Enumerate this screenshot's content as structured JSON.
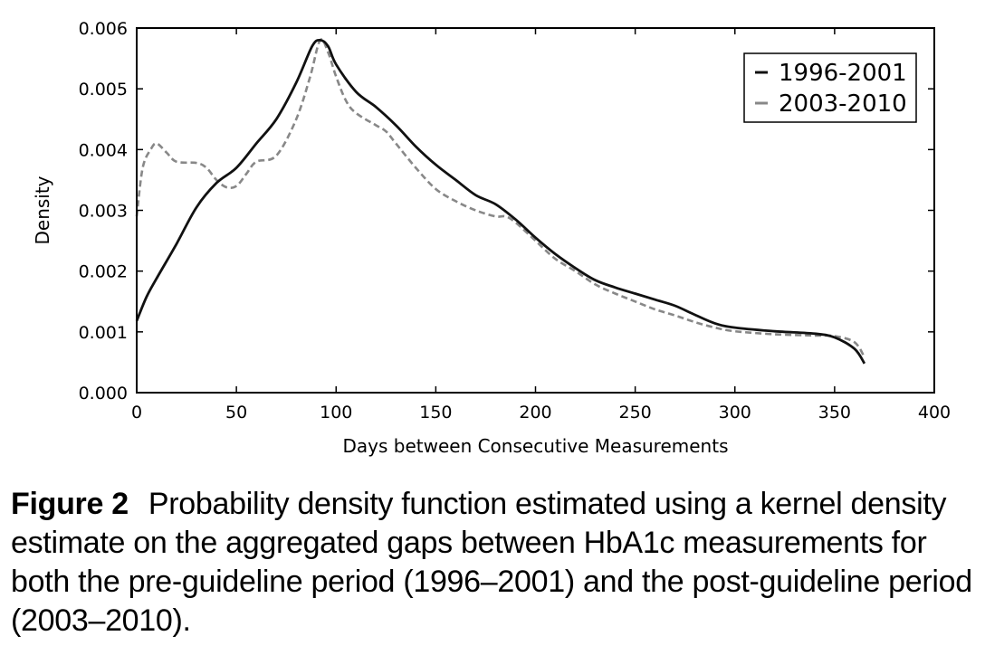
{
  "chart_data": {
    "type": "line",
    "xlabel": "Days between Consecutive Measurements",
    "ylabel": "Density",
    "xlim": [
      0,
      400
    ],
    "ylim": [
      0,
      0.006
    ],
    "xticks": [
      "0",
      "50",
      "100",
      "150",
      "200",
      "250",
      "300",
      "350",
      "400"
    ],
    "yticks": [
      "0.000",
      "0.001",
      "0.002",
      "0.003",
      "0.004",
      "0.005",
      "0.006"
    ],
    "grid": false,
    "legend_position": "top-right",
    "series": [
      {
        "name": "1996-2001",
        "style": "solid",
        "color": "#111111",
        "points": [
          [
            0,
            0.00118
          ],
          [
            5,
            0.00158
          ],
          [
            10,
            0.00188
          ],
          [
            20,
            0.00245
          ],
          [
            30,
            0.00305
          ],
          [
            40,
            0.00345
          ],
          [
            50,
            0.0037
          ],
          [
            60,
            0.0041
          ],
          [
            70,
            0.0045
          ],
          [
            80,
            0.0051
          ],
          [
            88,
            0.0057
          ],
          [
            92,
            0.0058
          ],
          [
            96,
            0.0057
          ],
          [
            100,
            0.0054
          ],
          [
            110,
            0.00495
          ],
          [
            120,
            0.0047
          ],
          [
            130,
            0.0044
          ],
          [
            140,
            0.00405
          ],
          [
            150,
            0.00375
          ],
          [
            160,
            0.0035
          ],
          [
            170,
            0.00325
          ],
          [
            180,
            0.0031
          ],
          [
            190,
            0.00285
          ],
          [
            200,
            0.00255
          ],
          [
            210,
            0.00228
          ],
          [
            220,
            0.00205
          ],
          [
            230,
            0.00185
          ],
          [
            240,
            0.00173
          ],
          [
            250,
            0.00163
          ],
          [
            260,
            0.00153
          ],
          [
            270,
            0.00143
          ],
          [
            280,
            0.00128
          ],
          [
            290,
            0.00114
          ],
          [
            300,
            0.00107
          ],
          [
            320,
            0.00101
          ],
          [
            340,
            0.00097
          ],
          [
            350,
            0.00091
          ],
          [
            360,
            0.00072
          ],
          [
            365,
            0.00048
          ]
        ]
      },
      {
        "name": "2003-2010",
        "style": "dashed",
        "color": "#888888",
        "points": [
          [
            0,
            0.0029
          ],
          [
            3,
            0.0037
          ],
          [
            7,
            0.004
          ],
          [
            10,
            0.0041
          ],
          [
            15,
            0.00395
          ],
          [
            20,
            0.0038
          ],
          [
            30,
            0.00378
          ],
          [
            35,
            0.0037
          ],
          [
            40,
            0.0035
          ],
          [
            45,
            0.00338
          ],
          [
            50,
            0.0034
          ],
          [
            55,
            0.0036
          ],
          [
            60,
            0.0038
          ],
          [
            70,
            0.0039
          ],
          [
            80,
            0.0045
          ],
          [
            87,
            0.0052
          ],
          [
            92,
            0.0058
          ],
          [
            96,
            0.0056
          ],
          [
            100,
            0.0052
          ],
          [
            105,
            0.0048
          ],
          [
            110,
            0.0046
          ],
          [
            120,
            0.0044
          ],
          [
            125,
            0.0043
          ],
          [
            130,
            0.0041
          ],
          [
            140,
            0.0037
          ],
          [
            150,
            0.00335
          ],
          [
            160,
            0.00315
          ],
          [
            170,
            0.003
          ],
          [
            180,
            0.0029
          ],
          [
            185,
            0.0029
          ],
          [
            190,
            0.0028
          ],
          [
            200,
            0.0025
          ],
          [
            210,
            0.0022
          ],
          [
            220,
            0.002
          ],
          [
            230,
            0.00178
          ],
          [
            240,
            0.00163
          ],
          [
            250,
            0.0015
          ],
          [
            260,
            0.00137
          ],
          [
            270,
            0.00127
          ],
          [
            280,
            0.00116
          ],
          [
            290,
            0.00107
          ],
          [
            300,
            0.00101
          ],
          [
            320,
            0.00096
          ],
          [
            340,
            0.00094
          ],
          [
            350,
            0.00093
          ],
          [
            360,
            0.00083
          ],
          [
            365,
            0.00058
          ]
        ]
      }
    ]
  },
  "caption": {
    "label": "Figure 2",
    "text": "Probability density function estimated using a kernel density estimate on the aggregated gaps between HbA1c measurements for both the pre-guideline period (1996–2001) and the post-guideline period (2003–2010)."
  }
}
